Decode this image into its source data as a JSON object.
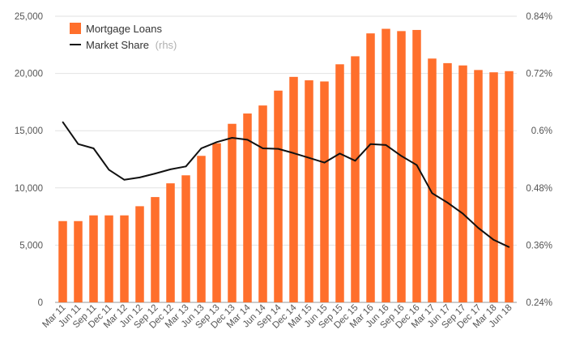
{
  "chart_data": {
    "type": "bar",
    "categories": [
      "Mar 11",
      "Jun 11",
      "Sep 11",
      "Dec 11",
      "Mar 12",
      "Jun 12",
      "Sep 12",
      "Dec 12",
      "Mar 13",
      "Jun 13",
      "Sep 13",
      "Dec 13",
      "Mar 14",
      "Jun 14",
      "Sep 14",
      "Dec 14",
      "Mar 15",
      "Jun 15",
      "Sep 15",
      "Dec 15",
      "Mar 16",
      "Jun 16",
      "Sep 16",
      "Dec 16",
      "Mar 17",
      "Jun 17",
      "Sep 17",
      "Dec 17",
      "Mar 18",
      "Jun 18"
    ],
    "series": [
      {
        "name": "Mortgage Loans",
        "kind": "bar",
        "axis": "left",
        "color": "#ff6f2c",
        "values": [
          7100,
          7100,
          7600,
          7600,
          7600,
          8400,
          9200,
          10400,
          11100,
          12800,
          13900,
          15600,
          16500,
          17200,
          18500,
          19700,
          19400,
          19300,
          20800,
          21500,
          23500,
          23900,
          23700,
          23800,
          21300,
          20900,
          20700,
          20300,
          20100,
          20200
        ]
      },
      {
        "name": "Market Share",
        "name_suffix": "(rhs)",
        "kind": "line",
        "axis": "right",
        "color": "#111111",
        "values": [
          0.618,
          0.572,
          0.563,
          0.518,
          0.497,
          0.502,
          0.51,
          0.519,
          0.525,
          0.563,
          0.576,
          0.585,
          0.581,
          0.563,
          0.562,
          0.553,
          0.543,
          0.533,
          0.552,
          0.537,
          0.572,
          0.57,
          0.547,
          0.528,
          0.469,
          0.449,
          0.426,
          0.396,
          0.371,
          0.356
        ]
      }
    ],
    "y_left": {
      "ylim": [
        0,
        25000
      ],
      "ticks": [
        "0",
        "5,000",
        "10,000",
        "15,000",
        "20,000",
        "25,000"
      ]
    },
    "y_right": {
      "ylim": [
        0.24,
        0.84
      ],
      "ticks": [
        "0.24%",
        "0.36%",
        "0.48%",
        "0.6%",
        "0.72%",
        "0.84%"
      ]
    },
    "legend": {
      "position": "top-left"
    },
    "grid": true
  }
}
